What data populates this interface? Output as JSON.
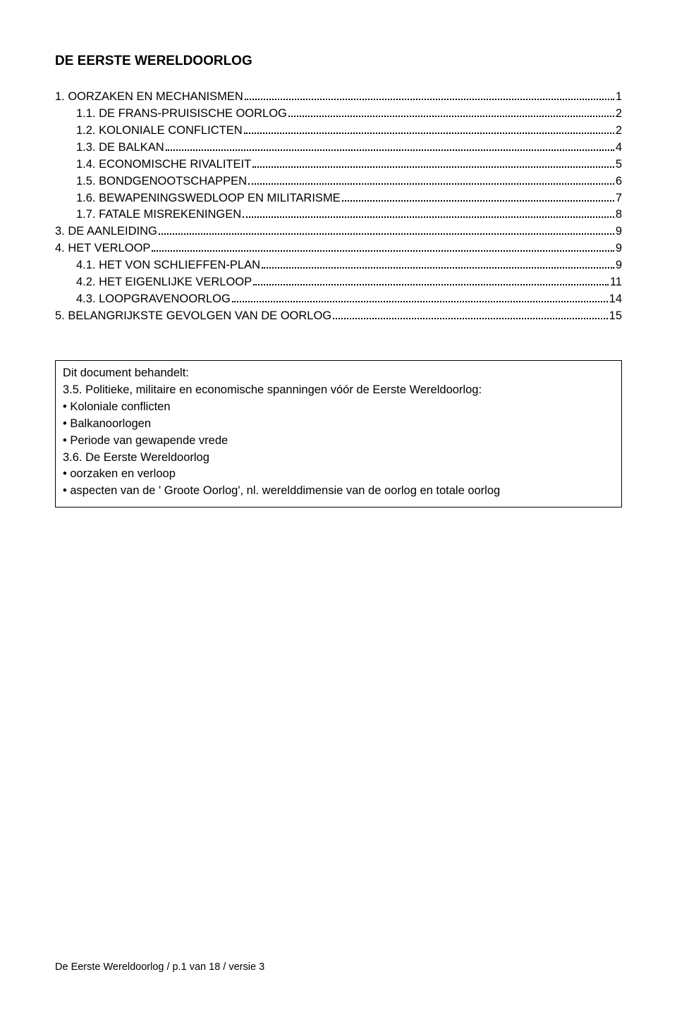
{
  "title": "DE EERSTE WERELDOORLOG",
  "toc": [
    {
      "label": " 1. OORZAKEN EN MECHANISMEN",
      "page": "1",
      "indent": 0
    },
    {
      "label": " 1.1. DE FRANS-PRUISISCHE OORLOG",
      "page": "2",
      "indent": 1
    },
    {
      "label": " 1.2. KOLONIALE CONFLICTEN",
      "page": "2",
      "indent": 1
    },
    {
      "label": " 1.3. DE BALKAN",
      "page": "4",
      "indent": 1
    },
    {
      "label": " 1.4. ECONOMISCHE RIVALITEIT",
      "page": "5",
      "indent": 1
    },
    {
      "label": " 1.5. BONDGENOOTSCHAPPEN",
      "page": "6",
      "indent": 1
    },
    {
      "label": " 1.6. BEWAPENINGSWEDLOOP EN MILITARISME",
      "page": "7",
      "indent": 1
    },
    {
      "label": " 1.7. FATALE MISREKENINGEN",
      "page": "8",
      "indent": 1
    },
    {
      "label": " 3. DE AANLEIDING",
      "page": "9",
      "indent": 0
    },
    {
      "label": " 4. HET VERLOOP",
      "page": "9",
      "indent": 0
    },
    {
      "label": " 4.1. HET VON SCHLIEFFEN-PLAN",
      "page": "9",
      "indent": 1
    },
    {
      "label": " 4.2. HET EIGENLIJKE VERLOOP",
      "page": "11",
      "indent": 1
    },
    {
      "label": " 4.3. LOOPGRAVENOORLOG",
      "page": "14",
      "indent": 1
    },
    {
      "label": " 5. BELANGRIJKSTE GEVOLGEN VAN DE OORLOG",
      "page": "15",
      "indent": 0
    }
  ],
  "summary": {
    "heading": "Dit document behandelt:",
    "block1_intro": "3.5. Politieke, militaire en economische spanningen vóór de Eerste Wereldoorlog:",
    "block1_bullets": [
      "Koloniale conflicten",
      "Balkanoorlogen",
      "Periode van gewapende vrede"
    ],
    "block2_intro": "3.6. De Eerste Wereldoorlog",
    "block2_bullets": [
      "oorzaken en verloop",
      "aspecten van de ' Groote Oorlog', nl. werelddimensie van de oorlog en totale oorlog"
    ]
  },
  "footer": "De Eerste Wereldoorlog / p.1 van 18 /  versie 3",
  "bullet_char": "•  "
}
